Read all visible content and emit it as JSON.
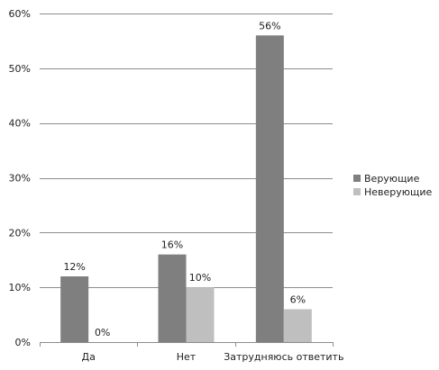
{
  "chart_data": {
    "type": "bar",
    "title": "",
    "xlabel": "",
    "ylabel": "",
    "categories": [
      "Да",
      "Нет",
      "Затрудняюсь ответить"
    ],
    "series": [
      {
        "name": "Верующие",
        "values": [
          12,
          16,
          56
        ],
        "labels": [
          "12%",
          "16%",
          "56%"
        ],
        "color": "#7f7f7f"
      },
      {
        "name": "Неверующие",
        "values": [
          0,
          10,
          6
        ],
        "labels": [
          "0%",
          "10%",
          "6%"
        ],
        "color": "#bfbfbf"
      }
    ],
    "ylim": [
      0,
      60
    ],
    "yticks": [
      0,
      10,
      20,
      30,
      40,
      50,
      60
    ],
    "ytick_labels": [
      "0%",
      "10%",
      "20%",
      "30%",
      "40%",
      "50%",
      "60%"
    ],
    "grid": true,
    "legend_position": "right"
  }
}
